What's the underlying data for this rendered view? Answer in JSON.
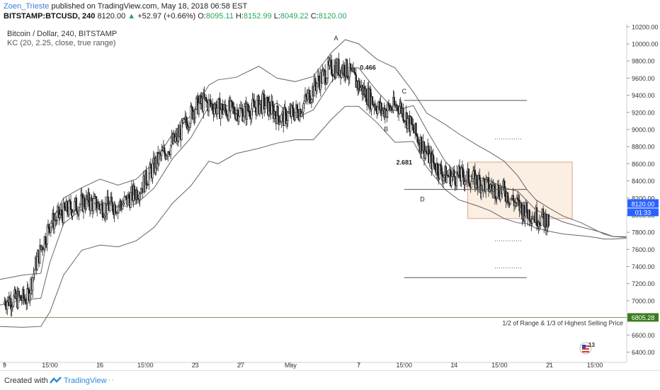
{
  "header": {
    "author": "Zoen_Trieste",
    "published_text": "published on TradingView.com, May 18, 2018 06:58 EST",
    "symbol": "BITSTAMP:BTCUSD, 240",
    "last_price": "8120.00",
    "change_arrow": "▲",
    "change": "+52.97 (+0.66%)",
    "o_label": "O:",
    "o_value": "8095.11",
    "h_label": "H:",
    "h_value": "8152.99",
    "l_label": "L:",
    "l_value": "8049.22",
    "c_label": "C:",
    "c_value": "8120.00"
  },
  "footer": {
    "created": "Created with",
    "brand": "TradingView",
    "dots": "···"
  },
  "colors": {
    "accent": "#2962ff",
    "up": "#26a65b",
    "band": "#666666",
    "candle": "#222222",
    "flat_label": "#3a7d1e",
    "box_fill": "#fbeee3",
    "box_stroke": "#e0a58a"
  },
  "chart_data": {
    "type": "candlestick",
    "title": "Bitcoin / Dollar, 240, BITSTAMP",
    "indicator": "KC (20, 2.25, close, true range)",
    "y_ticks": [
      10200,
      10000,
      9800,
      9600,
      9400,
      9200,
      9000,
      8800,
      8600,
      8400,
      8200,
      8000,
      7800,
      7600,
      7400,
      7200,
      7000,
      6800,
      6600,
      6400
    ],
    "ylim": [
      6280,
      10240
    ],
    "x_ticks": [
      {
        "label": "9",
        "x": 0
      },
      {
        "label": "15:00",
        "x": 10
      },
      {
        "label": "16",
        "x": 21
      },
      {
        "label": "15:00",
        "x": 31
      },
      {
        "label": "23",
        "x": 42
      },
      {
        "label": "27",
        "x": 52
      },
      {
        "label": "May",
        "x": 63
      },
      {
        "label": "7",
        "x": 78
      },
      {
        "label": "15:00",
        "x": 88
      },
      {
        "label": "14",
        "x": 99
      },
      {
        "label": "15:00",
        "x": 109
      },
      {
        "label": "21",
        "x": 120
      },
      {
        "label": "15:00",
        "x": 130
      }
    ],
    "xlim": [
      -1,
      137
    ],
    "last_price_label": "8120.00",
    "countdown_label": "01:33",
    "current_price": 8120,
    "horizontal_line": {
      "y": 6805.28,
      "label": "6805.28",
      "note": "1/2 of Range & 1/3 of Highest Selling Price"
    },
    "annotations": [
      {
        "text": "A",
        "x": 73,
        "y": 10040
      },
      {
        "text": "0.466",
        "x": 80,
        "y": 9700
      },
      {
        "text": "C",
        "x": 88,
        "y": 9420
      },
      {
        "text": "B",
        "x": 84,
        "y": 8980
      },
      {
        "text": "2.681",
        "x": 88,
        "y": 8590
      },
      {
        "text": "D",
        "x": 92,
        "y": 8160
      }
    ],
    "levels": [
      {
        "y": 9340,
        "x1": 88,
        "x2": 115,
        "style": "solid"
      },
      {
        "y": 8890,
        "x1": 108,
        "x2": 114,
        "style": "dotted"
      },
      {
        "y": 8300,
        "x1": 88,
        "x2": 115,
        "style": "solid"
      },
      {
        "y": 7700,
        "x1": 108,
        "x2": 114,
        "style": "dotted"
      },
      {
        "y": 7385,
        "x1": 108,
        "x2": 114,
        "style": "dotted"
      },
      {
        "y": 7270,
        "x1": 88,
        "x2": 115,
        "style": "solid"
      }
    ],
    "box": {
      "x1": 102,
      "x2": 125,
      "y_top": 8620,
      "y_bottom": 7960
    },
    "keltner_upper": [
      [
        -1,
        7250
      ],
      [
        4,
        7300
      ],
      [
        8,
        7320
      ],
      [
        10,
        7900
      ],
      [
        13,
        8200
      ],
      [
        17,
        8320
      ],
      [
        21,
        8420
      ],
      [
        25,
        8350
      ],
      [
        29,
        8420
      ],
      [
        33,
        8620
      ],
      [
        37,
        8950
      ],
      [
        41,
        9160
      ],
      [
        45,
        9520
      ],
      [
        47,
        9580
      ],
      [
        51,
        9610
      ],
      [
        56,
        9740
      ],
      [
        60,
        9600
      ],
      [
        64,
        9560
      ],
      [
        68,
        9620
      ],
      [
        72,
        9900
      ],
      [
        75,
        10050
      ],
      [
        78,
        10000
      ],
      [
        82,
        9820
      ],
      [
        86,
        9720
      ],
      [
        90,
        9440
      ],
      [
        93,
        9190
      ],
      [
        97,
        9060
      ],
      [
        100,
        8950
      ],
      [
        104,
        8820
      ],
      [
        107,
        8730
      ],
      [
        110,
        8630
      ],
      [
        113,
        8460
      ],
      [
        115,
        8300
      ],
      [
        117,
        8180
      ],
      [
        120,
        8080
      ],
      [
        123,
        7990
      ],
      [
        127,
        7910
      ],
      [
        130,
        7830
      ],
      [
        132,
        7780
      ],
      [
        134,
        7750
      ],
      [
        137,
        7740
      ]
    ],
    "keltner_middle": [
      [
        -1,
        6950
      ],
      [
        4,
        7010
      ],
      [
        8,
        7030
      ],
      [
        10,
        7450
      ],
      [
        13,
        7900
      ],
      [
        17,
        8070
      ],
      [
        21,
        8160
      ],
      [
        25,
        8090
      ],
      [
        29,
        8130
      ],
      [
        33,
        8320
      ],
      [
        37,
        8660
      ],
      [
        41,
        8900
      ],
      [
        45,
        9270
      ],
      [
        47,
        9320
      ],
      [
        51,
        9230
      ],
      [
        56,
        9210
      ],
      [
        60,
        9310
      ],
      [
        64,
        9130
      ],
      [
        68,
        9230
      ],
      [
        72,
        9560
      ],
      [
        75,
        9720
      ],
      [
        78,
        9720
      ],
      [
        82,
        9450
      ],
      [
        86,
        9220
      ],
      [
        90,
        9280
      ],
      [
        93,
        8990
      ],
      [
        97,
        8630
      ],
      [
        100,
        8460
      ],
      [
        104,
        8450
      ],
      [
        107,
        8400
      ],
      [
        110,
        8320
      ],
      [
        113,
        8280
      ],
      [
        115,
        8170
      ],
      [
        117,
        8060
      ],
      [
        120,
        7990
      ],
      [
        123,
        7920
      ],
      [
        127,
        7860
      ],
      [
        130,
        7820
      ],
      [
        132,
        7790
      ],
      [
        134,
        7750
      ],
      [
        137,
        7750
      ]
    ],
    "keltner_lower": [
      [
        -1,
        6700
      ],
      [
        4,
        6690
      ],
      [
        8,
        6700
      ],
      [
        10,
        6870
      ],
      [
        13,
        7300
      ],
      [
        17,
        7590
      ],
      [
        21,
        7650
      ],
      [
        25,
        7630
      ],
      [
        29,
        7700
      ],
      [
        33,
        7860
      ],
      [
        37,
        8140
      ],
      [
        41,
        8340
      ],
      [
        45,
        8630
      ],
      [
        47,
        8600
      ],
      [
        51,
        8720
      ],
      [
        56,
        8780
      ],
      [
        60,
        8840
      ],
      [
        64,
        8880
      ],
      [
        68,
        8880
      ],
      [
        72,
        9120
      ],
      [
        75,
        9270
      ],
      [
        78,
        9270
      ],
      [
        82,
        9080
      ],
      [
        86,
        8850
      ],
      [
        90,
        8860
      ],
      [
        93,
        8560
      ],
      [
        97,
        8300
      ],
      [
        100,
        8180
      ],
      [
        104,
        8110
      ],
      [
        107,
        8050
      ],
      [
        110,
        7960
      ],
      [
        113,
        7910
      ],
      [
        115,
        7900
      ],
      [
        117,
        7850
      ],
      [
        120,
        7810
      ],
      [
        123,
        7780
      ],
      [
        127,
        7760
      ],
      [
        130,
        7740
      ],
      [
        132,
        7720
      ],
      [
        134,
        7720
      ],
      [
        137,
        7730
      ]
    ]
  }
}
